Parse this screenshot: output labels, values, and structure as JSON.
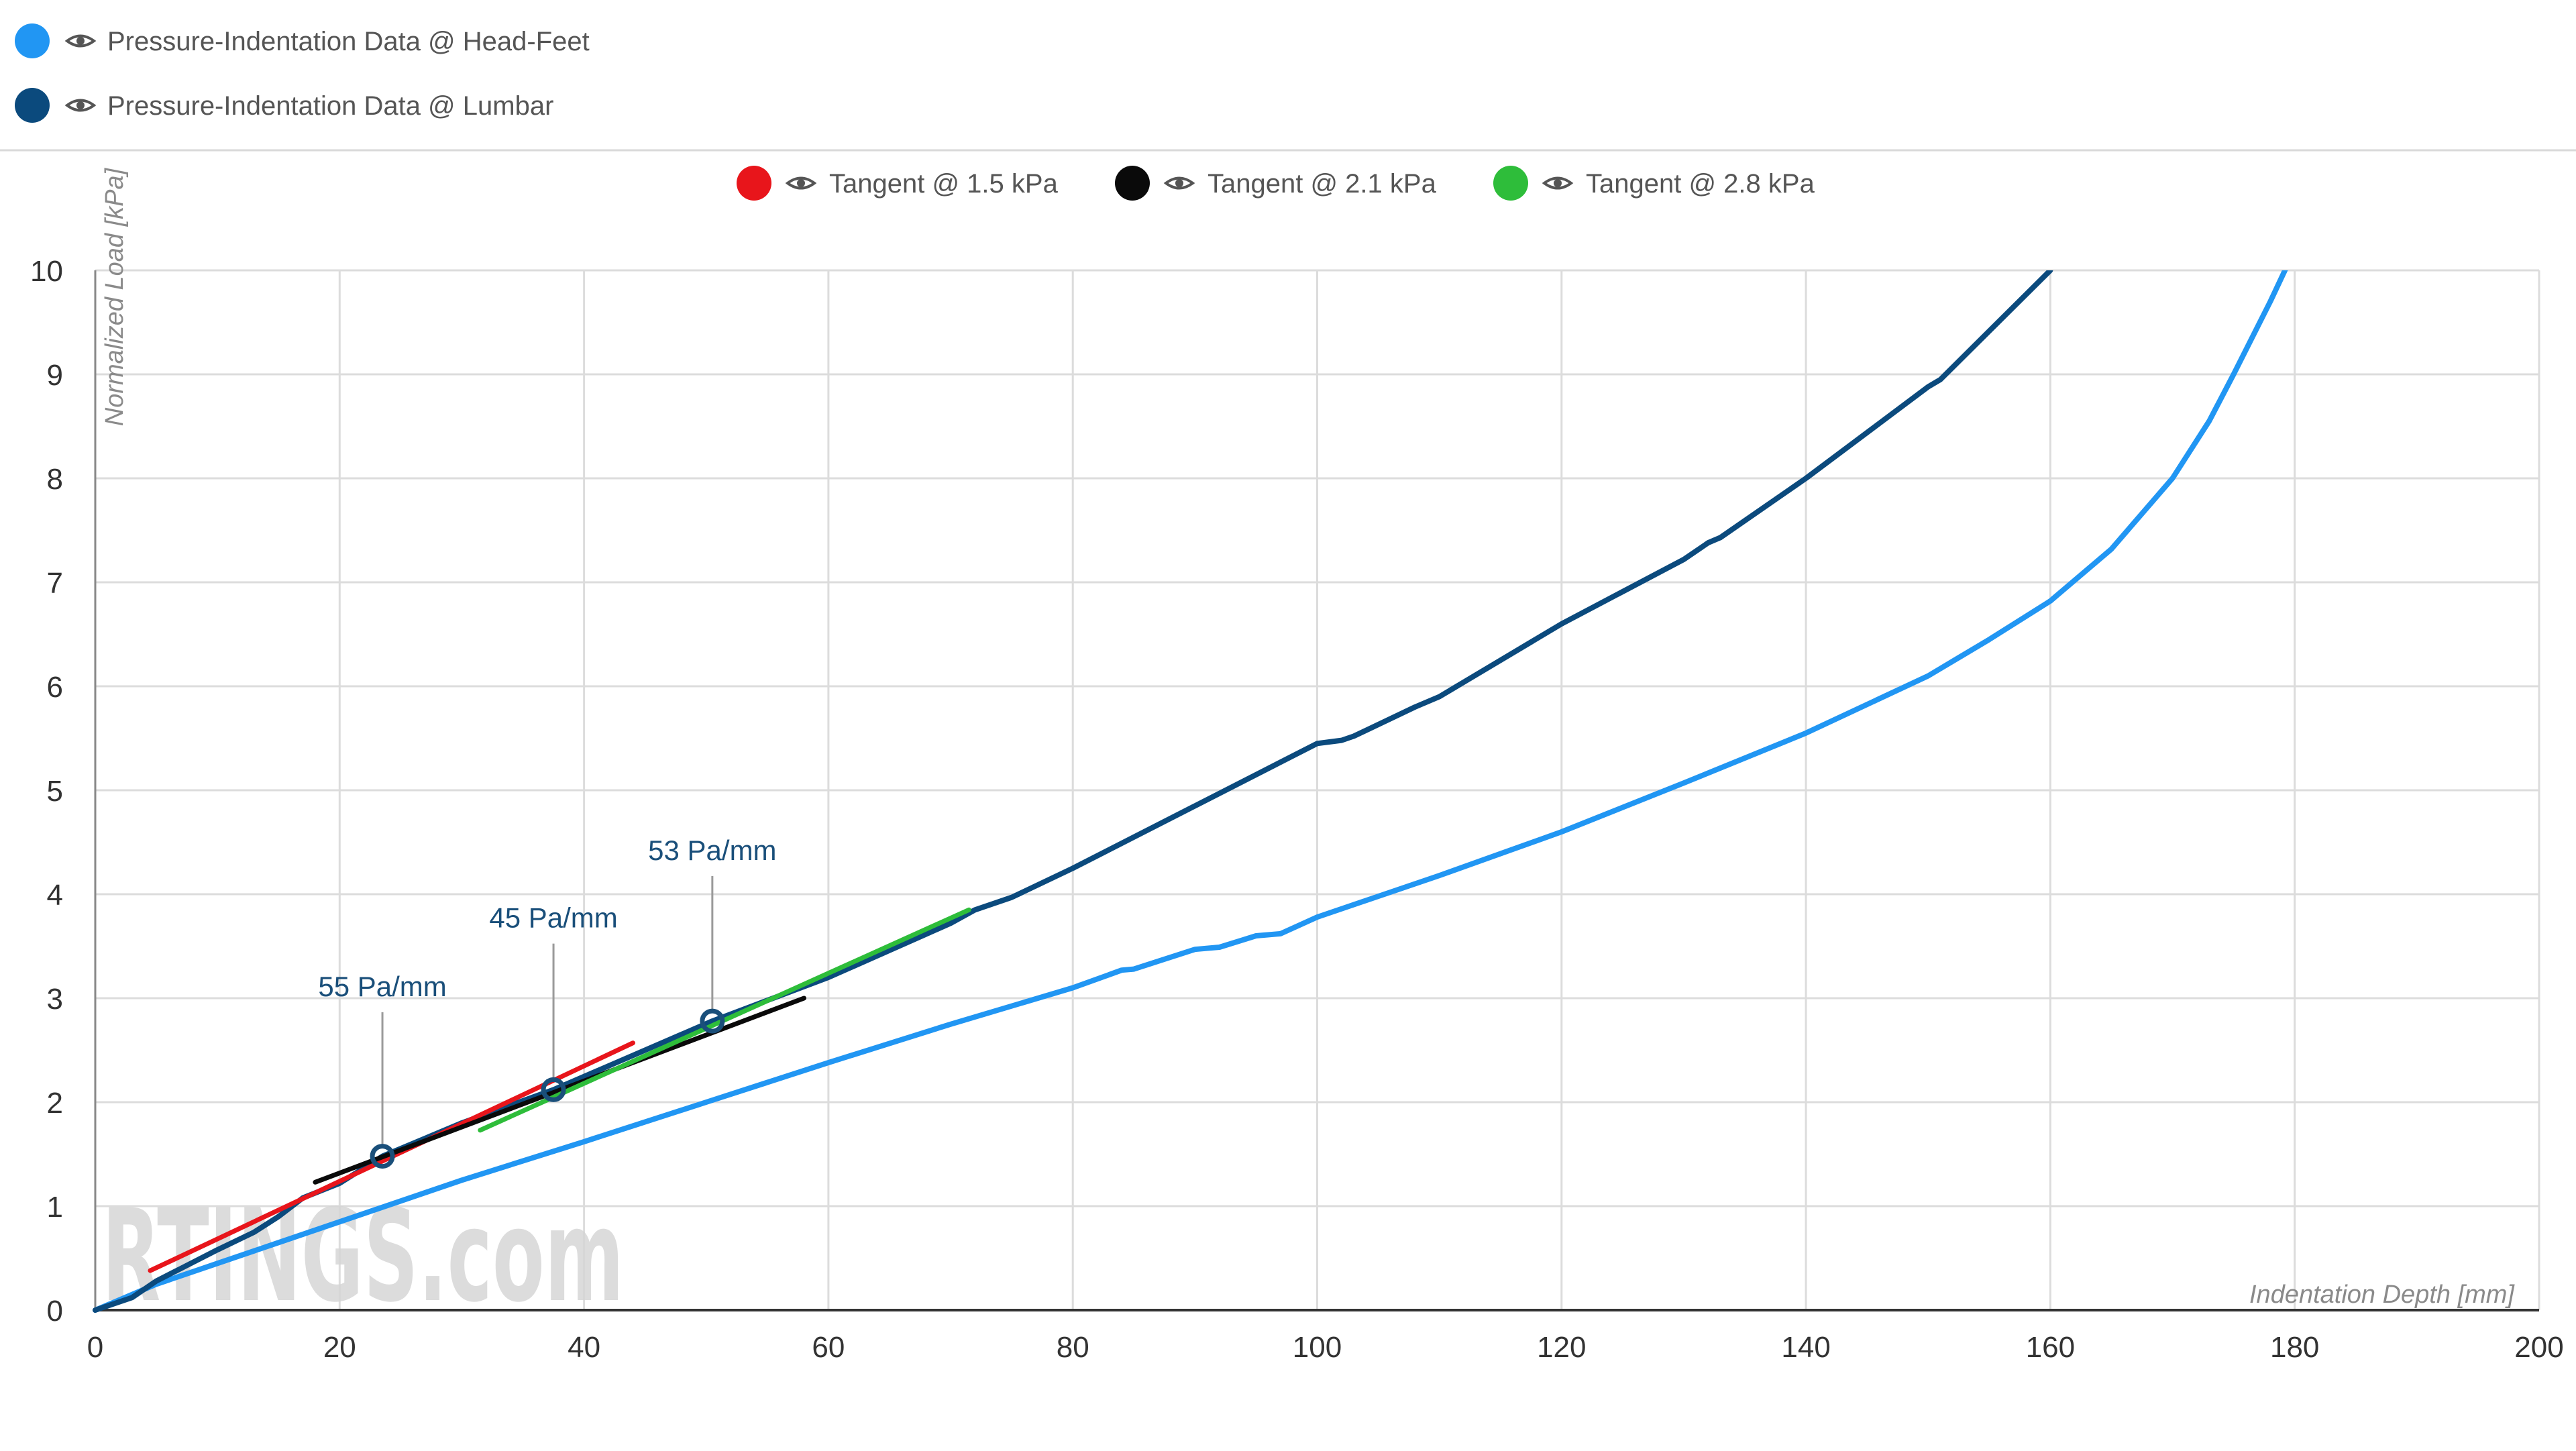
{
  "legend_top": [
    {
      "name": "Pressure-Indentation Data @ Head-Feet",
      "color": "#2196f3"
    },
    {
      "name": "Pressure-Indentation Data @ Lumbar",
      "color": "#0b4a7d"
    }
  ],
  "legend_tangents": [
    {
      "name": "Tangent @ 1.5 kPa",
      "color": "#e8151b"
    },
    {
      "name": "Tangent @ 2.1 kPa",
      "color": "#0a0a0a"
    },
    {
      "name": "Tangent @ 2.8 kPa",
      "color": "#2ebd3a"
    }
  ],
  "icons": {
    "eye": "eye-icon"
  },
  "watermark": "RTINGS.com",
  "chart_data": {
    "type": "line",
    "xlabel": "Indentation Depth [mm]",
    "ylabel": "Normalized Load [kPa]",
    "xlim": [
      0,
      200
    ],
    "ylim": [
      0,
      10
    ],
    "xticks": [
      0,
      20,
      40,
      60,
      80,
      100,
      120,
      140,
      160,
      180,
      200
    ],
    "yticks": [
      0,
      1,
      2,
      3,
      4,
      5,
      6,
      7,
      8,
      9,
      10
    ],
    "grid": true,
    "series": [
      {
        "name": "Pressure-Indentation Data @ Head-Feet",
        "color": "#2196f3",
        "x": [
          0,
          5,
          10,
          15,
          20,
          25,
          30,
          40,
          50,
          60,
          70,
          80,
          84,
          85,
          90,
          92,
          95,
          97,
          100,
          110,
          120,
          130,
          140,
          150,
          155,
          160,
          165,
          170,
          173,
          175,
          178,
          180,
          181
        ],
        "y": [
          0,
          0.25,
          0.45,
          0.65,
          0.85,
          1.05,
          1.25,
          1.62,
          2.0,
          2.38,
          2.75,
          3.1,
          3.27,
          3.28,
          3.47,
          3.49,
          3.6,
          3.62,
          3.78,
          4.18,
          4.6,
          5.07,
          5.55,
          6.1,
          6.45,
          6.82,
          7.32,
          8.0,
          8.55,
          9.0,
          9.7,
          10.2,
          10.6
        ]
      },
      {
        "name": "Pressure-Indentation Data @ Lumbar",
        "color": "#0b4a7d",
        "x": [
          0,
          3,
          5,
          7,
          10,
          13,
          15,
          17,
          20,
          23.5,
          30,
          37.5,
          44,
          50.5,
          60,
          70,
          72,
          75,
          80,
          90,
          100,
          102,
          103,
          108,
          110,
          120,
          130,
          132,
          133,
          140,
          150,
          151,
          160
        ],
        "y": [
          0,
          0.12,
          0.28,
          0.4,
          0.58,
          0.75,
          0.9,
          1.08,
          1.22,
          1.48,
          1.8,
          2.12,
          2.45,
          2.78,
          3.2,
          3.72,
          3.85,
          3.97,
          4.25,
          4.85,
          5.45,
          5.48,
          5.52,
          5.8,
          5.9,
          6.6,
          7.22,
          7.38,
          7.43,
          8.0,
          8.88,
          8.95,
          10.0
        ]
      },
      {
        "name": "Tangent @ 1.5 kPa",
        "color": "#e8151b",
        "x": [
          4.5,
          44
        ],
        "y": [
          0.38,
          2.57
        ]
      },
      {
        "name": "Tangent @ 2.1 kPa",
        "color": "#0a0a0a",
        "x": [
          18,
          58
        ],
        "y": [
          1.23,
          3.0
        ]
      },
      {
        "name": "Tangent @ 2.8 kPa",
        "color": "#2ebd3a",
        "x": [
          31.5,
          71.5
        ],
        "y": [
          1.73,
          3.85
        ]
      }
    ],
    "tangent_points": [
      {
        "x": 23.5,
        "y": 1.48,
        "label": "55 Pa/mm",
        "label_y": 3.02
      },
      {
        "x": 37.5,
        "y": 2.12,
        "label": "45 Pa/mm",
        "label_y": 3.68
      },
      {
        "x": 50.5,
        "y": 2.78,
        "label": "53 Pa/mm",
        "label_y": 4.33
      }
    ]
  }
}
